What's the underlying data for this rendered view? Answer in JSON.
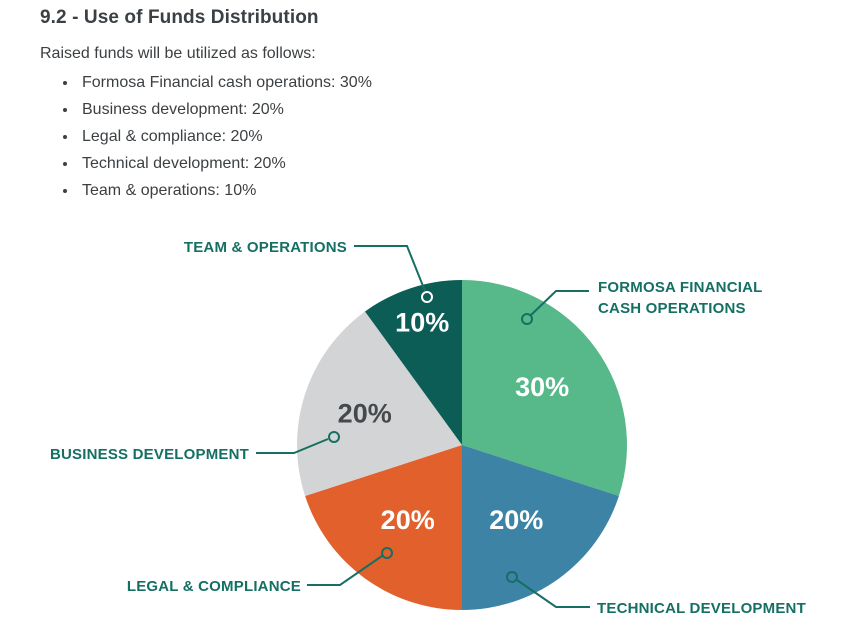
{
  "document": {
    "heading": "9.2 - Use of Funds Distribution",
    "intro": "Raised funds will be utilized as follows:",
    "bullets": [
      "Formosa Financial cash operations: 30%",
      "Business development: 20%",
      "Legal & compliance: 20%",
      "Technical development: 20%",
      "Team & operations: 10%"
    ]
  },
  "chart_data": {
    "type": "pie",
    "title": "Use of Funds Distribution",
    "start_angle_deg": 0,
    "direction": "clockwise",
    "label_color": "#156f63",
    "slices": [
      {
        "label": "FORMOSA FINANCIAL CASH OPERATIONS",
        "value": 30,
        "pct_label": "30%",
        "color": "#57b88a",
        "pct_color": "#ffffff",
        "label_radius": 0.6
      },
      {
        "label": "TECHNICAL DEVELOPMENT",
        "value": 20,
        "pct_label": "20%",
        "color": "#3d83a5",
        "pct_color": "#ffffff",
        "label_radius": 0.56
      },
      {
        "label": "LEGAL & COMPLIANCE",
        "value": 20,
        "pct_label": "20%",
        "color": "#e2602c",
        "pct_color": "#ffffff",
        "label_radius": 0.56
      },
      {
        "label": "BUSINESS DEVELOPMENT",
        "value": 20,
        "pct_label": "20%",
        "color": "#d2d4d5",
        "pct_color": "#45494d",
        "label_radius": 0.62
      },
      {
        "label": "TEAM & OPERATIONS",
        "value": 10,
        "pct_label": "10%",
        "color": "#0b5d56",
        "pct_color": "#ffffff",
        "label_radius": 0.78
      }
    ]
  }
}
